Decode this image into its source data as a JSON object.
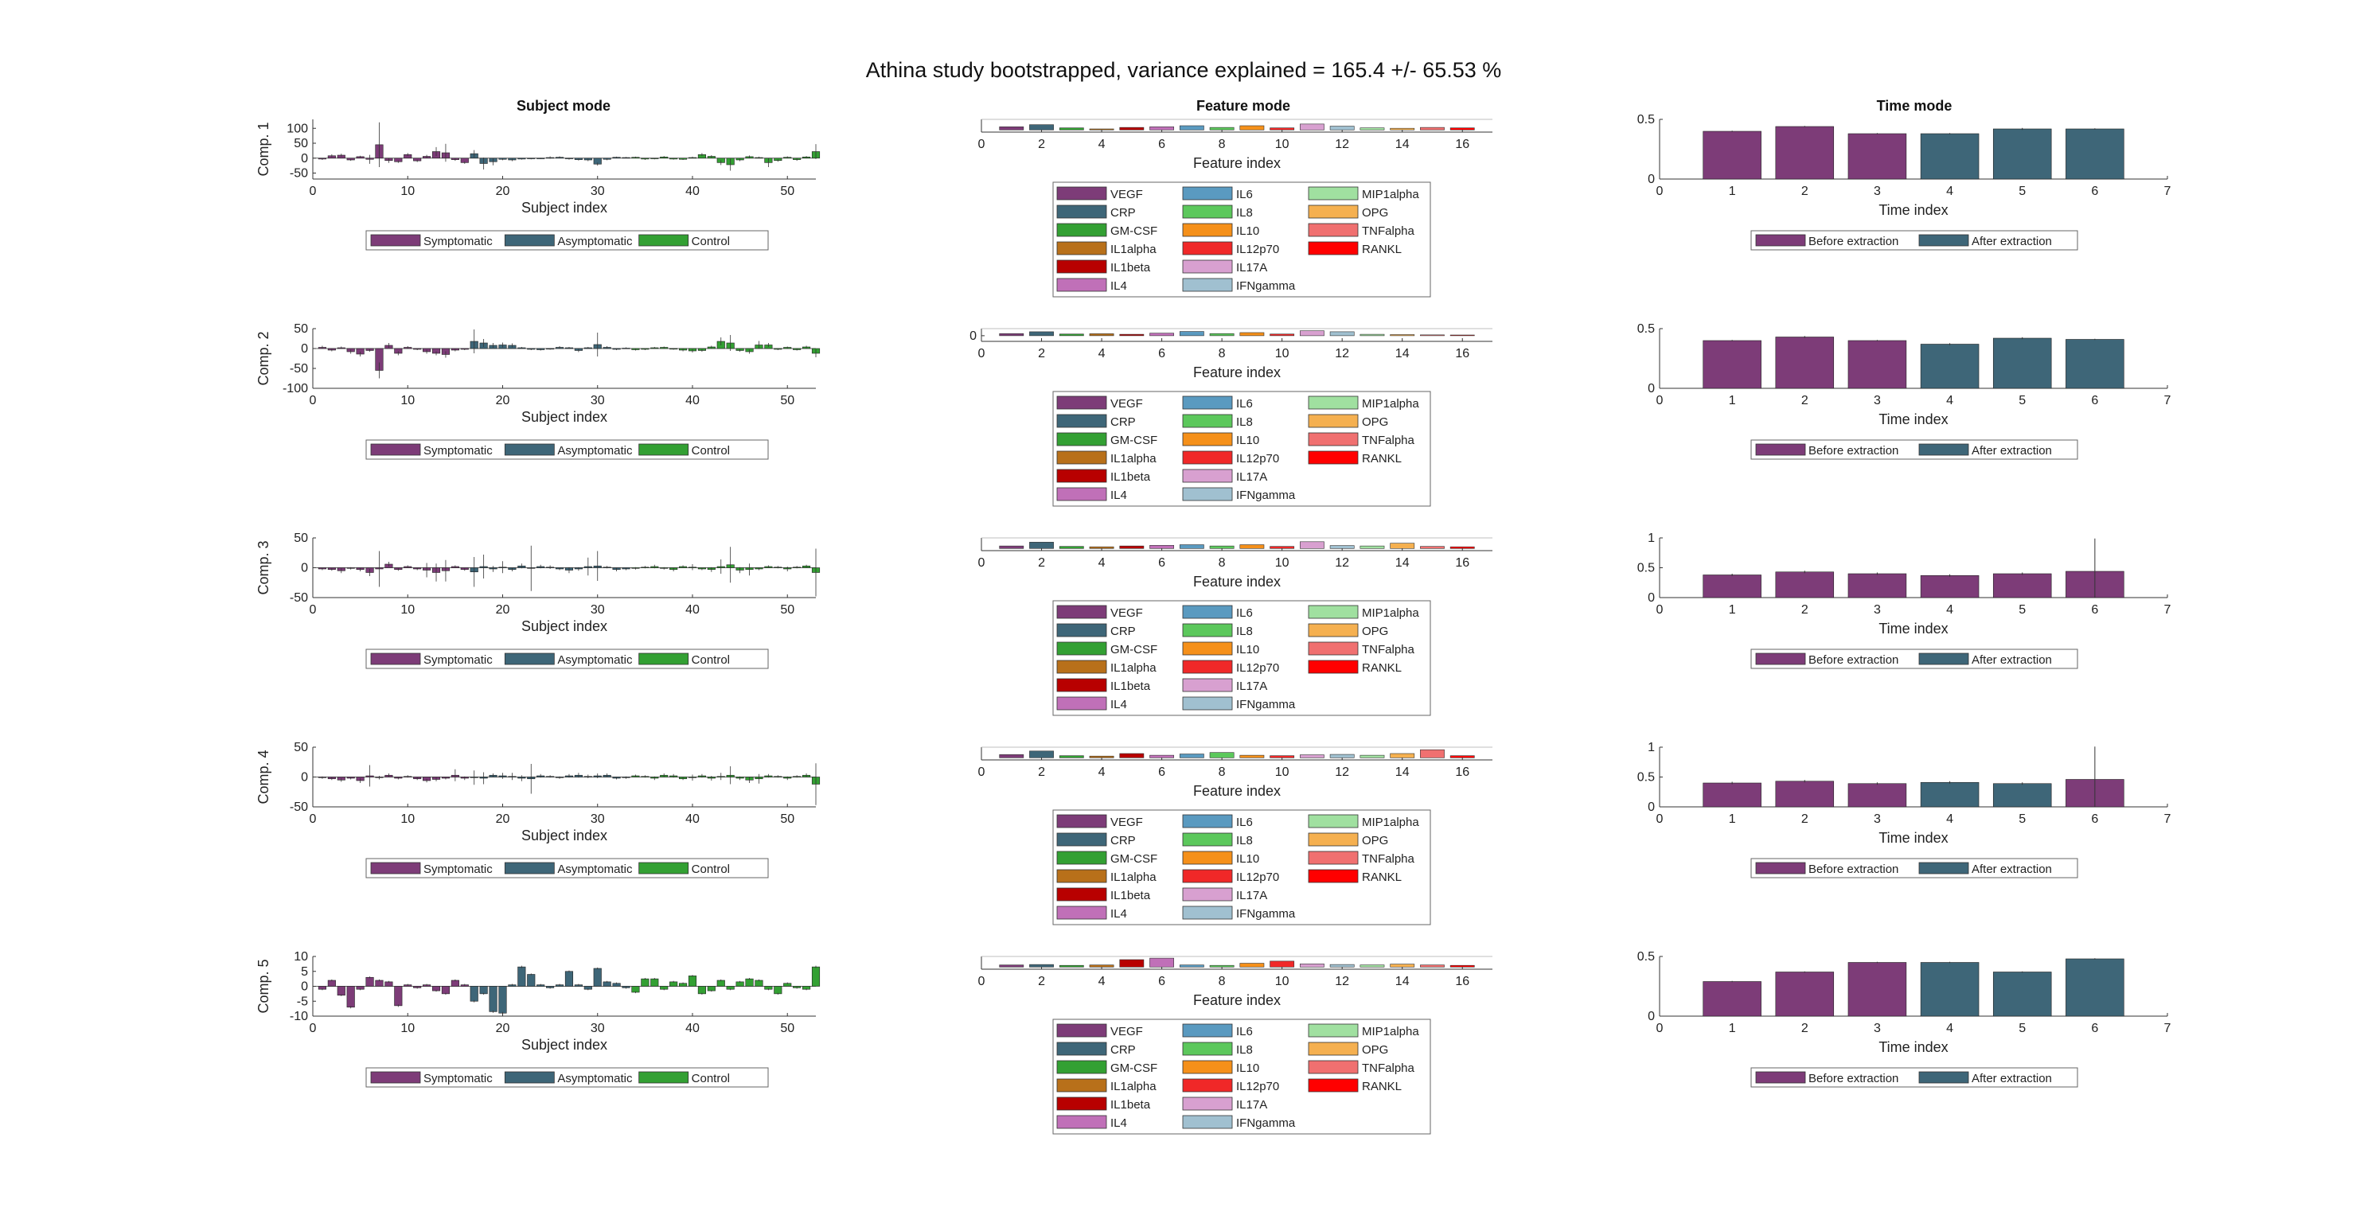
{
  "figure": {
    "title": "Athina study bootstrapped, variance explained = 165.4 +/- 65.53 %"
  },
  "column_titles": {
    "subject": "Subject mode",
    "feature": "Feature mode",
    "time": "Time mode"
  },
  "axis_labels": {
    "subject_x": "Subject index",
    "feature_x": "Feature index",
    "time_x": "Time index"
  },
  "legends": {
    "subject": [
      "Symptomatic",
      "Asymptomatic",
      "Control"
    ],
    "feature": [
      "VEGF",
      "CRP",
      "GM-CSF",
      "IL1alpha",
      "IL1beta",
      "IL4",
      "IL6",
      "IL8",
      "IL10",
      "IL12p70",
      "IL17A",
      "IFNgamma",
      "MIP1alpha",
      "OPG",
      "TNFalpha",
      "RANKL"
    ],
    "time": [
      "Before extraction",
      "After extraction"
    ]
  },
  "colors": {
    "symptomatic": "#7d3c78",
    "asymptomatic": "#3e6678",
    "control": "#33a033",
    "before_extraction": "#7d3c78",
    "after_extraction": "#3e6678",
    "features": [
      "#7d3c78",
      "#3e6678",
      "#33a033",
      "#b8701a",
      "#b80000",
      "#c070b8",
      "#5a9ac0",
      "#5cc85c",
      "#f5901a",
      "#f02828",
      "#d8a0d0",
      "#a0c0d0",
      "#a0e0a0",
      "#f5b050",
      "#f07070",
      "#ff0000"
    ]
  },
  "chart_data": [
    {
      "type": "bar",
      "row": 1,
      "panel": "subject",
      "ylabel": "Comp. 1",
      "xlim": [
        0,
        53
      ],
      "ylim": [
        -70,
        130
      ],
      "yticks": [
        -50,
        0,
        50,
        100
      ],
      "xticks": [
        0,
        10,
        20,
        30,
        40,
        50
      ],
      "groups": {
        "symptomatic": [
          1,
          16
        ],
        "asymptomatic": [
          17,
          33
        ],
        "control": [
          34,
          53
        ]
      },
      "values": [
        -3,
        8,
        10,
        -6,
        5,
        -4,
        45,
        -8,
        -12,
        12,
        -9,
        6,
        22,
        18,
        -5,
        -15,
        15,
        -18,
        -12,
        -4,
        -6,
        -3,
        -2,
        -1,
        2,
        3,
        -2,
        -5,
        -6,
        -20,
        -4,
        3,
        2,
        3,
        -3,
        -2,
        4,
        -3,
        -4,
        2,
        12,
        6,
        -15,
        -22,
        -6,
        5,
        2,
        -15,
        -8,
        3,
        -5,
        4,
        22
      ],
      "errors": [
        3,
        5,
        5,
        3,
        3,
        15,
        75,
        8,
        4,
        5,
        4,
        5,
        15,
        30,
        4,
        4,
        12,
        20,
        12,
        3,
        4,
        2,
        2,
        2,
        4,
        3,
        3,
        3,
        4,
        5,
        3,
        2,
        2,
        2,
        3,
        2,
        3,
        2,
        2,
        3,
        5,
        4,
        8,
        20,
        4,
        4,
        3,
        15,
        4,
        3,
        4,
        3,
        25
      ]
    },
    {
      "type": "bar",
      "row": 2,
      "panel": "subject",
      "ylabel": "Comp. 2",
      "xlim": [
        0,
        53
      ],
      "ylim": [
        -100,
        50
      ],
      "yticks": [
        -100,
        -50,
        0,
        50
      ],
      "xticks": [
        0,
        10,
        20,
        30,
        40,
        50
      ],
      "groups": {
        "symptomatic": [
          1,
          16
        ],
        "asymptomatic": [
          17,
          33
        ],
        "control": [
          34,
          53
        ]
      },
      "values": [
        3,
        -4,
        2,
        -8,
        -14,
        -5,
        -55,
        8,
        -12,
        3,
        -2,
        -8,
        -12,
        -15,
        -4,
        -2,
        18,
        14,
        8,
        9,
        8,
        2,
        -2,
        -3,
        -1,
        3,
        2,
        -5,
        2,
        10,
        3,
        -2,
        1,
        -3,
        -2,
        2,
        3,
        -1,
        -4,
        -6,
        -5,
        4,
        18,
        14,
        -5,
        -8,
        9,
        9,
        -2,
        3,
        -3,
        4,
        -12
      ],
      "errors": [
        4,
        3,
        3,
        5,
        6,
        3,
        20,
        6,
        5,
        3,
        2,
        5,
        5,
        8,
        3,
        2,
        30,
        10,
        6,
        6,
        5,
        2,
        2,
        2,
        2,
        3,
        2,
        4,
        2,
        30,
        3,
        2,
        2,
        2,
        2,
        2,
        2,
        2,
        3,
        4,
        3,
        3,
        10,
        20,
        3,
        5,
        10,
        5,
        2,
        2,
        2,
        3,
        10
      ]
    },
    {
      "type": "bar",
      "row": 3,
      "panel": "subject",
      "ylabel": "Comp. 3",
      "xlim": [
        0,
        53
      ],
      "ylim": [
        -50,
        50
      ],
      "yticks": [
        -50,
        0,
        50
      ],
      "xticks": [
        0,
        10,
        20,
        30,
        40,
        50
      ],
      "groups": {
        "symptomatic": [
          1,
          16
        ],
        "asymptomatic": [
          17,
          33
        ],
        "control": [
          34,
          53
        ]
      },
      "values": [
        -2,
        -3,
        -5,
        -1,
        -3,
        -8,
        -2,
        6,
        -3,
        2,
        -2,
        -4,
        -8,
        -5,
        2,
        -3,
        -7,
        2,
        -2,
        1,
        -3,
        3,
        -1,
        2,
        1,
        -2,
        -4,
        -2,
        2,
        3,
        1,
        -3,
        -2,
        -1,
        1,
        2,
        -1,
        -3,
        2,
        1,
        -2,
        -3,
        2,
        5,
        -4,
        -3,
        -2,
        2,
        1,
        -2,
        1,
        3,
        -8
      ],
      "errors": [
        2,
        2,
        4,
        2,
        3,
        6,
        30,
        4,
        2,
        2,
        2,
        12,
        15,
        18,
        2,
        2,
        25,
        20,
        5,
        10,
        3,
        4,
        38,
        3,
        3,
        2,
        5,
        3,
        15,
        25,
        2,
        3,
        2,
        2,
        2,
        3,
        2,
        3,
        2,
        5,
        2,
        4,
        12,
        30,
        5,
        10,
        2,
        2,
        2,
        4,
        2,
        2,
        40
      ]
    },
    {
      "type": "bar",
      "row": 4,
      "panel": "subject",
      "ylabel": "Comp. 4",
      "xlim": [
        0,
        53
      ],
      "ylim": [
        -50,
        50
      ],
      "yticks": [
        -50,
        0,
        50
      ],
      "xticks": [
        0,
        10,
        20,
        30,
        40,
        50
      ],
      "groups": {
        "symptomatic": [
          1,
          16
        ],
        "asymptomatic": [
          17,
          33
        ],
        "control": [
          34,
          53
        ]
      },
      "values": [
        -1,
        -3,
        -5,
        -2,
        -6,
        2,
        -1,
        3,
        -2,
        1,
        -3,
        -6,
        -4,
        -2,
        3,
        -2,
        -1,
        -2,
        3,
        2,
        1,
        -2,
        -3,
        2,
        1,
        -1,
        2,
        3,
        1,
        2,
        3,
        -2,
        -1,
        2,
        1,
        -2,
        3,
        2,
        -3,
        -1,
        2,
        -2,
        1,
        3,
        -2,
        -5,
        -3,
        2,
        1,
        -2,
        1,
        3,
        -12
      ],
      "errors": [
        2,
        2,
        3,
        2,
        4,
        18,
        3,
        3,
        2,
        2,
        2,
        3,
        3,
        2,
        10,
        3,
        12,
        10,
        3,
        5,
        6,
        5,
        25,
        3,
        2,
        2,
        3,
        4,
        3,
        4,
        3,
        2,
        2,
        2,
        2,
        3,
        3,
        3,
        2,
        5,
        3,
        4,
        6,
        15,
        3,
        5,
        8,
        3,
        2,
        3,
        2,
        3,
        35
      ]
    },
    {
      "type": "bar",
      "row": 5,
      "panel": "subject",
      "ylabel": "Comp. 5",
      "xlim": [
        0,
        53
      ],
      "ylim": [
        -10,
        10
      ],
      "yticks": [
        -10,
        -5,
        0,
        5,
        10
      ],
      "xticks": [
        0,
        10,
        20,
        30,
        40,
        50
      ],
      "groups": {
        "symptomatic": [
          1,
          16
        ],
        "asymptomatic": [
          17,
          33
        ],
        "control": [
          34,
          53
        ]
      },
      "values": [
        -1,
        2,
        -3,
        -7,
        -1,
        3,
        2,
        1.5,
        -6.5,
        0.5,
        -0.5,
        0.5,
        -1.5,
        -2.5,
        2,
        0.5,
        -5,
        -2.5,
        -8.5,
        -9,
        0.5,
        6.5,
        4,
        0.5,
        -0.5,
        0.5,
        5,
        0.5,
        -1,
        6,
        1.5,
        1,
        -0.5,
        -2,
        2.5,
        2.5,
        -1,
        1.5,
        1,
        3.5,
        -2.5,
        -1.5,
        2,
        -1,
        1.5,
        2.5,
        2,
        -1,
        -2.5,
        1,
        -0.5,
        -1,
        6.5
      ],
      "errors": [
        0.3,
        0.3,
        0.3,
        0.4,
        0.3,
        0.3,
        0.3,
        0.3,
        0.4,
        0.3,
        0.3,
        0.3,
        0.3,
        0.3,
        0.3,
        0.3,
        0.4,
        0.3,
        0.4,
        0.4,
        0.3,
        0.4,
        0.3,
        0.3,
        0.3,
        0.3,
        0.3,
        0.3,
        0.3,
        0.3,
        0.3,
        0.3,
        0.3,
        0.3,
        0.3,
        0.3,
        0.3,
        0.3,
        0.3,
        0.3,
        0.3,
        0.3,
        0.3,
        0.3,
        0.3,
        0.3,
        0.3,
        0.3,
        0.3,
        0.3,
        0.3,
        0.3,
        0.4
      ]
    },
    {
      "type": "bar",
      "row": 1,
      "panel": "feature",
      "xlim": [
        0,
        17
      ],
      "ylim": [
        -0.1,
        0.5
      ],
      "xticks": [
        0,
        2,
        4,
        6,
        8,
        10,
        12,
        14,
        16
      ],
      "values": [
        0.15,
        0.25,
        0.1,
        0.05,
        0.12,
        0.15,
        0.2,
        0.12,
        0.2,
        0.1,
        0.28,
        0.18,
        0.1,
        0.08,
        0.12,
        0.1
      ]
    },
    {
      "type": "bar",
      "row": 2,
      "panel": "feature",
      "xlim": [
        0,
        17
      ],
      "ylim": [
        -0.4,
        0.5
      ],
      "yticks": [
        0
      ],
      "xticks": [
        0,
        2,
        4,
        6,
        8,
        10,
        12,
        14,
        16
      ],
      "values": [
        0.15,
        0.28,
        0.12,
        0.14,
        0.1,
        0.18,
        0.3,
        0.15,
        0.22,
        0.12,
        0.35,
        0.28,
        0.1,
        0.08,
        0.06,
        0.05
      ]
    },
    {
      "type": "bar",
      "row": 3,
      "panel": "feature",
      "xlim": [
        0,
        17
      ],
      "ylim": [
        -0.1,
        0.5
      ],
      "xticks": [
        0,
        2,
        4,
        6,
        8,
        10,
        12,
        14,
        16
      ],
      "values": [
        0.12,
        0.3,
        0.1,
        0.08,
        0.12,
        0.15,
        0.18,
        0.12,
        0.18,
        0.1,
        0.32,
        0.14,
        0.12,
        0.25,
        0.1,
        0.08
      ]
    },
    {
      "type": "bar",
      "row": 4,
      "panel": "feature",
      "xlim": [
        0,
        17
      ],
      "ylim": [
        -0.1,
        0.5
      ],
      "xticks": [
        0,
        2,
        4,
        6,
        8,
        10,
        12,
        14,
        16
      ],
      "values": [
        0.15,
        0.32,
        0.1,
        0.08,
        0.2,
        0.12,
        0.18,
        0.25,
        0.12,
        0.1,
        0.14,
        0.16,
        0.12,
        0.2,
        0.38,
        0.1
      ]
    },
    {
      "type": "bar",
      "row": 5,
      "panel": "feature",
      "xlim": [
        0,
        17
      ],
      "ylim": [
        -0.1,
        0.5
      ],
      "xticks": [
        0,
        2,
        4,
        6,
        8,
        10,
        12,
        14,
        16
      ],
      "values": [
        0.1,
        0.12,
        0.08,
        0.1,
        0.35,
        0.42,
        0.1,
        0.08,
        0.18,
        0.28,
        0.15,
        0.12,
        0.1,
        0.14,
        0.1,
        0.08
      ]
    },
    {
      "type": "bar",
      "row": 1,
      "panel": "time",
      "xlim": [
        0,
        7
      ],
      "ylim": [
        0,
        0.5
      ],
      "yticks": [
        0,
        0.5
      ],
      "xticks": [
        0,
        1,
        2,
        3,
        4,
        5,
        6,
        7
      ],
      "groups": {
        "before_extraction": [
          1,
          3
        ],
        "after_extraction": [
          4,
          6
        ]
      },
      "values": [
        0.4,
        0.44,
        0.38,
        0.38,
        0.42,
        0.42
      ],
      "errors": [
        0.005,
        0.005,
        0.005,
        0.005,
        0.008,
        0.005
      ]
    },
    {
      "type": "bar",
      "row": 2,
      "panel": "time",
      "xlim": [
        0,
        7
      ],
      "ylim": [
        0,
        0.5
      ],
      "yticks": [
        0,
        0.5
      ],
      "xticks": [
        0,
        1,
        2,
        3,
        4,
        5,
        6,
        7
      ],
      "groups": {
        "before_extraction": [
          1,
          3
        ],
        "after_extraction": [
          4,
          6
        ]
      },
      "values": [
        0.4,
        0.43,
        0.4,
        0.37,
        0.42,
        0.41
      ],
      "errors": [
        0.005,
        0.008,
        0.005,
        0.008,
        0.008,
        0.005
      ]
    },
    {
      "type": "bar",
      "row": 3,
      "panel": "time",
      "xlim": [
        0,
        7
      ],
      "ylim": [
        0,
        1
      ],
      "yticks": [
        0,
        0.5,
        1
      ],
      "xticks": [
        0,
        1,
        2,
        3,
        4,
        5,
        6,
        7
      ],
      "groups": {
        "before_extraction": [
          1,
          6
        ]
      },
      "values": [
        0.38,
        0.43,
        0.4,
        0.37,
        0.4,
        0.44
      ],
      "errors": [
        0.02,
        0.02,
        0.02,
        0.02,
        0.02,
        0.55
      ]
    },
    {
      "type": "bar",
      "row": 4,
      "panel": "time",
      "xlim": [
        0,
        7
      ],
      "ylim": [
        0,
        1
      ],
      "yticks": [
        0,
        0.5,
        1
      ],
      "xticks": [
        0,
        1,
        2,
        3,
        4,
        5,
        6,
        7
      ],
      "groups": {
        "before_extraction": [
          1,
          3
        ],
        "after_extraction": [
          4,
          5
        ],
        "before_extraction_2": [
          6,
          6
        ]
      },
      "values": [
        0.4,
        0.43,
        0.39,
        0.41,
        0.39,
        0.46
      ],
      "errors": [
        0.02,
        0.02,
        0.02,
        0.02,
        0.02,
        0.55
      ]
    },
    {
      "type": "bar",
      "row": 5,
      "panel": "time",
      "xlim": [
        0,
        7
      ],
      "ylim": [
        0,
        0.5
      ],
      "yticks": [
        0,
        0.5
      ],
      "xticks": [
        0,
        1,
        2,
        3,
        4,
        5,
        6,
        7
      ],
      "groups": {
        "before_extraction": [
          1,
          3
        ],
        "after_extraction": [
          4,
          6
        ]
      },
      "values": [
        0.29,
        0.37,
        0.45,
        0.45,
        0.37,
        0.48
      ],
      "errors": [
        0.005,
        0.005,
        0.005,
        0.005,
        0.005,
        0.005
      ]
    }
  ]
}
